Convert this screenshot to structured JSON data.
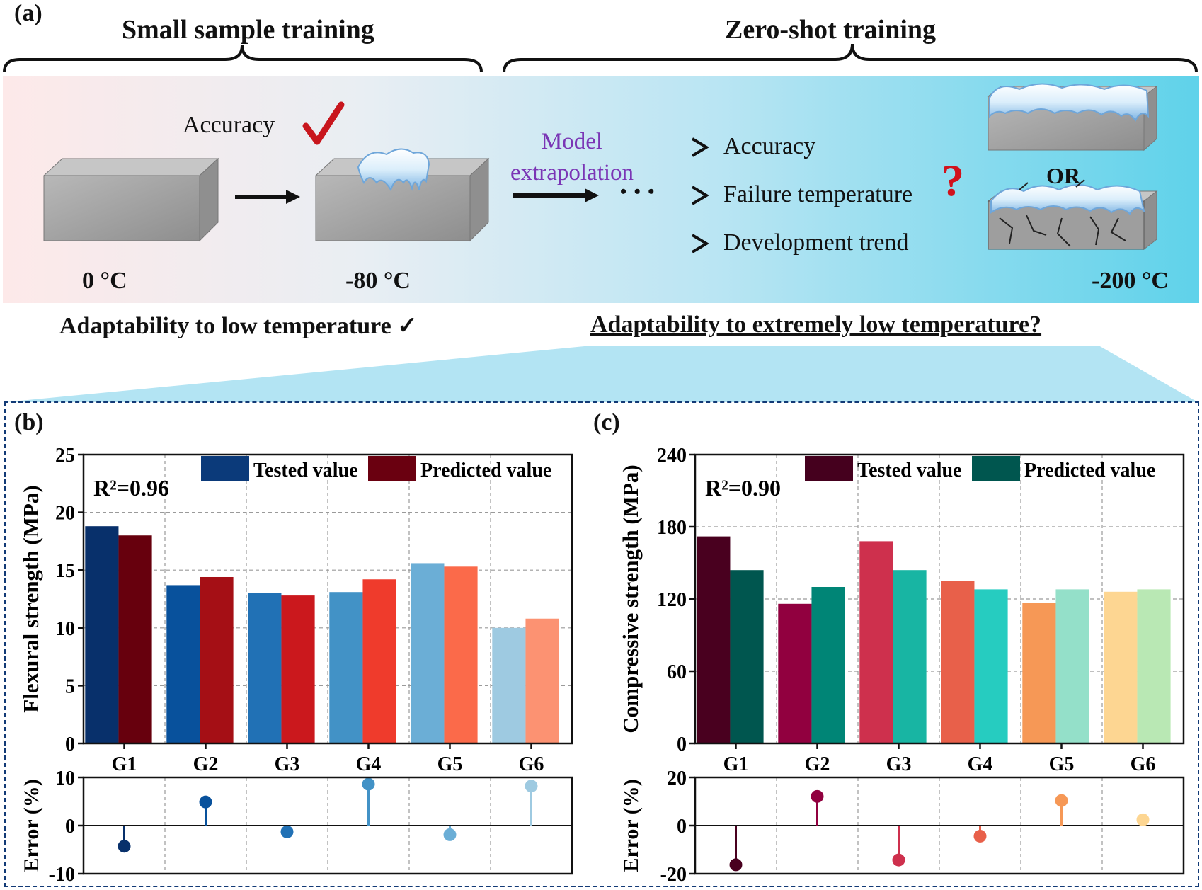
{
  "panel_a": {
    "label": "(a)",
    "small_sample_title": "Small sample training",
    "zero_shot_title": "Zero-shot training",
    "accuracy_label": "Accuracy",
    "model_extrapolation_line1": "Model",
    "model_extrapolation_line2": "extrapolation",
    "bullets": [
      "Accuracy",
      "Failure temperature",
      "Development trend"
    ],
    "or_label": "OR",
    "temps": {
      "t0": "0 °C",
      "t80": "-80 °C",
      "t200": "-200 °C"
    },
    "adapt_low": "Adaptability to low temperature ✓",
    "adapt_extreme": "Adaptability to extremely low temperature?",
    "question_mark": "?",
    "ellipsis": "• • •"
  },
  "chart_data": [
    {
      "panel": "(b)",
      "type": "bar",
      "categories": [
        "G1",
        "G2",
        "G3",
        "G4",
        "G5",
        "G6"
      ],
      "ylabel": "Flexural strength (MPa)",
      "ylim": [
        0,
        25
      ],
      "yticks": [
        0,
        5,
        10,
        15,
        20,
        25
      ],
      "r2": "R²=0.96",
      "series": [
        {
          "name": "Tested value",
          "values": [
            18.8,
            13.7,
            13.0,
            13.1,
            15.6,
            10.0
          ],
          "colors": [
            "#08306b",
            "#08519c",
            "#2171b5",
            "#4292c6",
            "#6baed6",
            "#9ecae1"
          ],
          "legend_color": "#0b3a7a"
        },
        {
          "name": "Predicted value",
          "values": [
            18.0,
            14.4,
            12.8,
            14.2,
            15.3,
            10.8
          ],
          "colors": [
            "#67000d",
            "#a50f15",
            "#cb181d",
            "#ef3b2c",
            "#fb6a4a",
            "#fc9272"
          ],
          "legend_color": "#6a0010"
        }
      ],
      "error": {
        "ylabel": "Error (%)",
        "ylim": [
          -10,
          10
        ],
        "yticks": [
          -10,
          0,
          10
        ],
        "values": [
          -4.3,
          4.9,
          -1.3,
          8.6,
          -1.9,
          8.2
        ],
        "colors": [
          "#08306b",
          "#08519c",
          "#2171b5",
          "#4292c6",
          "#6baed6",
          "#9ecae1"
        ]
      }
    },
    {
      "panel": "(c)",
      "type": "bar",
      "categories": [
        "G1",
        "G2",
        "G3",
        "G4",
        "G5",
        "G6"
      ],
      "ylabel": "Compressive strength (MPa)",
      "ylim": [
        0,
        240
      ],
      "yticks": [
        0,
        60,
        120,
        180,
        240
      ],
      "r2": "R²=0.90",
      "series": [
        {
          "name": "Tested value",
          "values": [
            172,
            116,
            168,
            135,
            117,
            126
          ],
          "colors": [
            "#49001f",
            "#91003f",
            "#ce304d",
            "#e8604a",
            "#f69856",
            "#fdd692"
          ],
          "legend_color": "#45001e"
        },
        {
          "name": "Predicted value",
          "values": [
            144,
            130,
            144,
            128,
            128,
            128
          ],
          "colors": [
            "#00564f",
            "#008576",
            "#18b5a3",
            "#26ccc0",
            "#94e0c9",
            "#b9e8b4"
          ],
          "legend_color": "#00564f"
        }
      ],
      "error": {
        "ylabel": "Error (%)",
        "ylim": [
          -20,
          20
        ],
        "yticks": [
          -20,
          0,
          20
        ],
        "values": [
          -16.3,
          12.1,
          -14.3,
          -4.4,
          10.4,
          2.4
        ],
        "colors": [
          "#49001f",
          "#91003f",
          "#ce304d",
          "#e8604a",
          "#f69856",
          "#fdd692"
        ]
      }
    }
  ]
}
